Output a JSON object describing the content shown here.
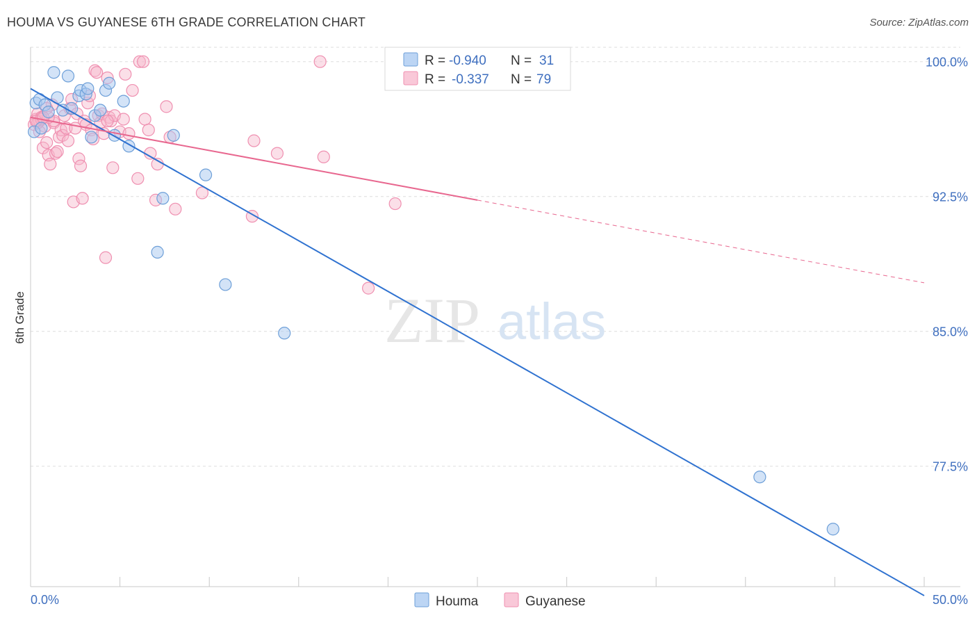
{
  "title": "HOUMA VS GUYANESE 6TH GRADE CORRELATION CHART",
  "source": "Source: ZipAtlas.com",
  "watermark": {
    "zip": "ZIP",
    "atlas": "atlas"
  },
  "colors": {
    "houma": "#a8c8f0",
    "houma_stroke": "#6d9fd8",
    "houma_line": "#2f72d0",
    "guyanese": "#f6b8cc",
    "guyanese_stroke": "#ef8fb0",
    "guyanese_line": "#e8678f",
    "axis_label": "#3f6fbf",
    "grid": "#dddddd"
  },
  "chart_data": {
    "type": "scatter",
    "title": "HOUMA VS GUYANESE 6TH GRADE CORRELATION CHART",
    "xlabel": "",
    "ylabel": "6th Grade",
    "xlim": [
      0,
      50
    ],
    "ylim": [
      70.8,
      100.8
    ],
    "x_ticks": [
      "0.0%",
      "50.0%"
    ],
    "y_ticks": [
      {
        "value": 100.0,
        "label": "100.0%"
      },
      {
        "value": 92.5,
        "label": "92.5%"
      },
      {
        "value": 85.0,
        "label": "85.0%"
      },
      {
        "value": 77.5,
        "label": "77.5%"
      }
    ],
    "legend": {
      "placement": "top-center",
      "entries": [
        {
          "name": "Houma",
          "r_label": "R = ",
          "r": "-0.940",
          "n_label": "N = ",
          "n": "31"
        },
        {
          "name": "Guyanese",
          "r_label": "R = ",
          "r": "-0.337",
          "n_label": "N = ",
          "n": "79"
        }
      ]
    },
    "series": [
      {
        "name": "Houma",
        "points": [
          [
            0.2,
            96.1
          ],
          [
            0.3,
            97.7
          ],
          [
            0.5,
            97.9
          ],
          [
            0.8,
            97.6
          ],
          [
            1.0,
            97.2
          ],
          [
            1.3,
            99.4
          ],
          [
            1.5,
            98.0
          ],
          [
            1.8,
            97.3
          ],
          [
            2.1,
            99.2
          ],
          [
            2.3,
            97.4
          ],
          [
            2.7,
            98.1
          ],
          [
            2.8,
            98.4
          ],
          [
            3.1,
            98.2
          ],
          [
            3.2,
            98.5
          ],
          [
            3.4,
            95.8
          ],
          [
            3.6,
            97.0
          ],
          [
            3.9,
            97.3
          ],
          [
            4.2,
            98.4
          ],
          [
            4.4,
            98.8
          ],
          [
            4.7,
            95.9
          ],
          [
            5.2,
            97.8
          ],
          [
            5.5,
            95.3
          ],
          [
            7.1,
            89.4
          ],
          [
            7.4,
            92.4
          ],
          [
            8.0,
            95.9
          ],
          [
            9.8,
            93.7
          ],
          [
            10.9,
            87.6
          ],
          [
            14.2,
            84.9
          ],
          [
            40.8,
            76.9
          ],
          [
            44.9,
            74.0
          ],
          [
            0.6,
            96.3
          ]
        ],
        "trend": {
          "x0": 0.0,
          "y0": 98.5,
          "x1": 50.0,
          "y1": 70.3
        }
      },
      {
        "name": "Guyanese",
        "points": [
          [
            0.2,
            96.5
          ],
          [
            0.3,
            96.8
          ],
          [
            0.4,
            97.1
          ],
          [
            0.5,
            96.7
          ],
          [
            0.6,
            96.9
          ],
          [
            0.7,
            95.2
          ],
          [
            0.8,
            96.4
          ],
          [
            0.9,
            95.5
          ],
          [
            1.0,
            94.8
          ],
          [
            1.1,
            94.3
          ],
          [
            1.2,
            97.6
          ],
          [
            1.3,
            96.6
          ],
          [
            1.4,
            94.9
          ],
          [
            1.5,
            95.0
          ],
          [
            1.6,
            95.8
          ],
          [
            1.7,
            96.2
          ],
          [
            1.8,
            95.9
          ],
          [
            1.9,
            97.0
          ],
          [
            2.0,
            96.3
          ],
          [
            2.1,
            95.6
          ],
          [
            2.2,
            97.4
          ],
          [
            2.3,
            97.9
          ],
          [
            2.4,
            92.2
          ],
          [
            2.6,
            97.1
          ],
          [
            2.7,
            94.6
          ],
          [
            2.8,
            94.2
          ],
          [
            2.9,
            92.4
          ],
          [
            3.0,
            96.7
          ],
          [
            3.1,
            96.5
          ],
          [
            3.2,
            97.7
          ],
          [
            3.3,
            98.1
          ],
          [
            3.4,
            96.2
          ],
          [
            3.5,
            95.7
          ],
          [
            3.6,
            99.5
          ],
          [
            3.7,
            99.4
          ],
          [
            3.8,
            97.0
          ],
          [
            3.9,
            96.6
          ],
          [
            4.0,
            97.1
          ],
          [
            4.1,
            96.0
          ],
          [
            4.2,
            89.1
          ],
          [
            4.3,
            99.1
          ],
          [
            4.4,
            96.9
          ],
          [
            4.5,
            96.7
          ],
          [
            4.6,
            94.1
          ],
          [
            4.7,
            97.0
          ],
          [
            5.0,
            96.1
          ],
          [
            5.2,
            96.8
          ],
          [
            5.3,
            99.3
          ],
          [
            5.5,
            96.0
          ],
          [
            5.7,
            98.4
          ],
          [
            6.0,
            93.5
          ],
          [
            6.1,
            100.0
          ],
          [
            6.3,
            100.0
          ],
          [
            6.4,
            96.8
          ],
          [
            6.6,
            96.2
          ],
          [
            6.7,
            94.9
          ],
          [
            7.0,
            92.3
          ],
          [
            7.1,
            94.3
          ],
          [
            8.1,
            91.8
          ],
          [
            7.8,
            95.8
          ],
          [
            7.6,
            97.5
          ],
          [
            9.6,
            92.7
          ],
          [
            12.4,
            91.4
          ],
          [
            12.5,
            95.6
          ],
          [
            13.8,
            94.9
          ],
          [
            16.2,
            100.0
          ],
          [
            16.4,
            94.7
          ],
          [
            18.9,
            87.4
          ],
          [
            20.4,
            92.1
          ],
          [
            0.9,
            97.4
          ],
          [
            1.3,
            96.7
          ],
          [
            2.5,
            96.3
          ],
          [
            0.5,
            96.1
          ],
          [
            1.0,
            96.9
          ],
          [
            4.3,
            96.7
          ],
          [
            0.4,
            96.6
          ],
          [
            0.6,
            96.8
          ],
          [
            0.3,
            96.7
          ],
          [
            0.7,
            96.9
          ]
        ],
        "trend": {
          "x0": 0.0,
          "y0": 96.9,
          "x1": 25.0,
          "y1": 92.3
        },
        "trend_dashed": {
          "x0": 25.0,
          "y0": 92.3,
          "x1": 50.0,
          "y1": 87.7
        }
      }
    ]
  }
}
